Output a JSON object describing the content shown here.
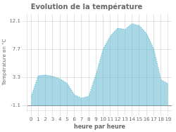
{
  "chart_data": {
    "type": "area",
    "title": "Evolution de la température",
    "x_label": "heure par heure",
    "y_label": "Température en °C",
    "x": [
      0,
      1,
      2,
      3,
      4,
      5,
      6,
      7,
      8,
      9,
      10,
      11,
      12,
      13,
      14,
      15,
      16,
      17,
      18,
      19
    ],
    "values": [
      0.3,
      3.6,
      3.7,
      3.5,
      3.1,
      2.4,
      0.6,
      0.1,
      0.4,
      3.8,
      7.8,
      9.8,
      11.0,
      10.8,
      11.7,
      11.4,
      10.2,
      7.8,
      3.0,
      2.3
    ],
    "baseline": -1.1,
    "color": "#60b8d0",
    "line_style": "dotted",
    "xlim": [
      -0.5,
      19.5
    ],
    "xticks": [
      0,
      1,
      2,
      3,
      4,
      5,
      6,
      7,
      8,
      9,
      10,
      11,
      12,
      13,
      14,
      15,
      16,
      17,
      18,
      19
    ],
    "ylim": [
      -1.8,
      13.2
    ],
    "yticks": [
      -1.1,
      3.3,
      7.7,
      12.1
    ],
    "grid": true
  }
}
